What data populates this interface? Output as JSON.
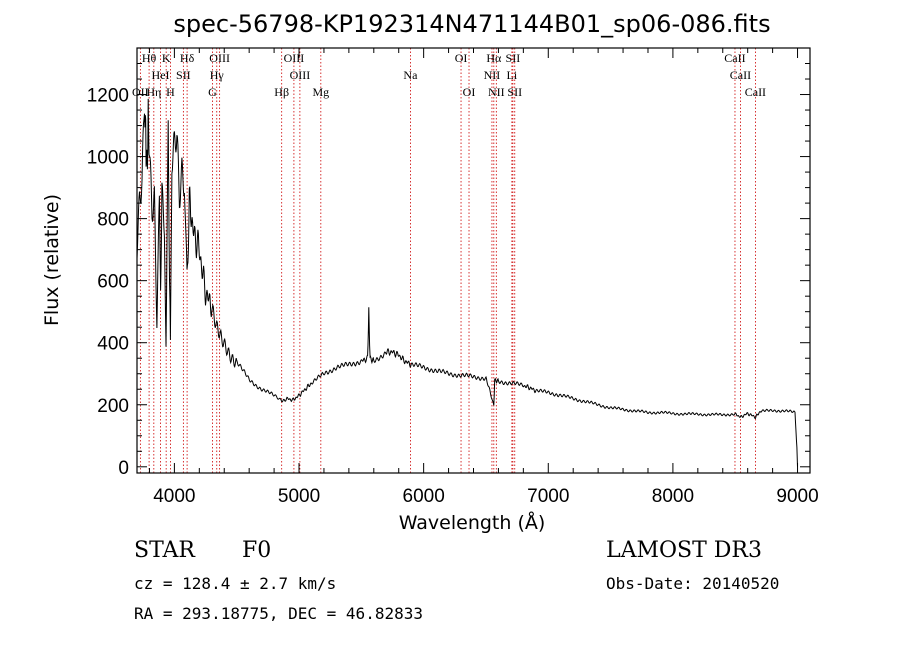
{
  "chart_data": {
    "type": "line",
    "title": "spec-56798-KP192314N471144B01_sp06-086.fits",
    "xlabel": "Wavelength (Å)",
    "ylabel": "Flux (relative)",
    "xlim": [
      3700,
      9100
    ],
    "ylim": [
      -20,
      1350
    ],
    "xticks": [
      4000,
      5000,
      6000,
      7000,
      8000,
      9000
    ],
    "yticks": [
      0,
      200,
      400,
      600,
      800,
      1000,
      1200
    ],
    "series": [
      {
        "name": "flux",
        "x": [
          3700,
          3720,
          3740,
          3760,
          3770,
          3780,
          3790,
          3800,
          3820,
          3840,
          3860,
          3880,
          3889,
          3900,
          3920,
          3933,
          3950,
          3968,
          3980,
          4000,
          4020,
          4040,
          4060,
          4080,
          4101,
          4120,
          4150,
          4200,
          4250,
          4300,
          4340,
          4380,
          4420,
          4500,
          4600,
          4700,
          4800,
          4861,
          4900,
          4950,
          5000,
          5050,
          5100,
          5200,
          5300,
          5400,
          5500,
          5550,
          5560,
          5570,
          5600,
          5700,
          5750,
          5800,
          5850,
          5900,
          6000,
          6100,
          6200,
          6300,
          6400,
          6500,
          6563,
          6570,
          6600,
          6700,
          6800,
          6850,
          6900,
          7000,
          7100,
          7200,
          7300,
          7400,
          7500,
          7600,
          7700,
          7800,
          7900,
          8000,
          8100,
          8200,
          8300,
          8400,
          8500,
          8542,
          8600,
          8662,
          8700,
          8800,
          8900,
          8980,
          8995,
          9000
        ],
        "y": [
          720,
          860,
          900,
          1150,
          1080,
          950,
          1120,
          1000,
          820,
          880,
          480,
          900,
          560,
          900,
          780,
          400,
          1040,
          380,
          960,
          1020,
          1080,
          880,
          980,
          940,
          600,
          860,
          760,
          700,
          560,
          520,
          440,
          400,
          380,
          340,
          280,
          250,
          230,
          210,
          220,
          215,
          230,
          250,
          270,
          300,
          320,
          330,
          340,
          350,
          500,
          350,
          340,
          370,
          370,
          360,
          340,
          330,
          320,
          310,
          300,
          295,
          290,
          285,
          200,
          280,
          275,
          270,
          262,
          255,
          245,
          240,
          230,
          220,
          210,
          200,
          190,
          185,
          180,
          175,
          175,
          172,
          170,
          170,
          168,
          168,
          170,
          160,
          172,
          160,
          178,
          182,
          180,
          175,
          60,
          0
        ]
      }
    ],
    "line_labels": [
      {
        "text": "OII",
        "wl": 3727,
        "row": 3
      },
      {
        "text": "Hθ",
        "wl": 3797,
        "row": 1
      },
      {
        "text": "Hη",
        "wl": 3835,
        "row": 3
      },
      {
        "text": "HeI",
        "wl": 3889,
        "row": 2
      },
      {
        "text": "K",
        "wl": 3934,
        "row": 1
      },
      {
        "text": "SII",
        "wl": 4072,
        "row": 2
      },
      {
        "text": "H",
        "wl": 3968,
        "row": 3
      },
      {
        "text": "Hδ",
        "wl": 4102,
        "row": 1
      },
      {
        "text": "OIII",
        "wl": 4363,
        "row": 1
      },
      {
        "text": "Hγ",
        "wl": 4340,
        "row": 2
      },
      {
        "text": "G",
        "wl": 4305,
        "row": 3
      },
      {
        "text": "Hβ",
        "wl": 4861,
        "row": 3
      },
      {
        "text": "OIII",
        "wl": 4959,
        "row": 1
      },
      {
        "text": "OIII",
        "wl": 5007,
        "row": 2
      },
      {
        "text": "Mg",
        "wl": 5175,
        "row": 3
      },
      {
        "text": "Na",
        "wl": 5894,
        "row": 2
      },
      {
        "text": "OI",
        "wl": 6300,
        "row": 1
      },
      {
        "text": "OI",
        "wl": 6364,
        "row": 3
      },
      {
        "text": "Hα",
        "wl": 6563,
        "row": 1
      },
      {
        "text": "NII",
        "wl": 6548,
        "row": 2
      },
      {
        "text": "NII",
        "wl": 6583,
        "row": 3
      },
      {
        "text": "SII",
        "wl": 6716,
        "row": 1
      },
      {
        "text": "Li",
        "wl": 6708,
        "row": 2
      },
      {
        "text": "SII",
        "wl": 6731,
        "row": 3
      },
      {
        "text": "CaII",
        "wl": 8498,
        "row": 1
      },
      {
        "text": "CaII",
        "wl": 8542,
        "row": 2
      },
      {
        "text": "CaII",
        "wl": 8662,
        "row": 3
      }
    ],
    "line_positions": [
      3727,
      3797,
      3835,
      3889,
      3934,
      3968,
      4072,
      4102,
      4305,
      4340,
      4363,
      4861,
      4959,
      5007,
      5175,
      5894,
      6300,
      6364,
      6548,
      6563,
      6583,
      6708,
      6716,
      6731,
      8498,
      8542,
      8662
    ],
    "line_color": "#cc0000",
    "series_color": "#000000"
  },
  "info": {
    "class": "STAR",
    "subclass": "F0",
    "survey": "LAMOST DR3",
    "cz": "cz = 128.4 ± 2.7 km/s",
    "obsdate": "Obs-Date: 20140520",
    "radec": "RA = 293.18775, DEC =  46.82833"
  }
}
